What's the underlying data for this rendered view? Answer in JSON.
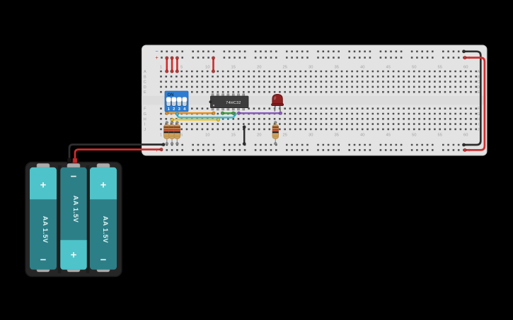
{
  "breadboard": {
    "row_labels": [
      "A",
      "B",
      "C",
      "D",
      "E",
      "F",
      "G",
      "H",
      "I",
      "J"
    ],
    "column_labels": [
      "1",
      "5",
      "10",
      "15",
      "20",
      "25",
      "30",
      "35",
      "40",
      "45",
      "50",
      "55",
      "60"
    ],
    "rail_minus": "−",
    "rail_plus": "+",
    "rail_minus_color": "#4a90d9",
    "rail_plus_color": "#d9534f",
    "body_color": "#e3e3e3"
  },
  "components": {
    "dip_switch": {
      "label": "ON",
      "positions": [
        "1",
        "2",
        "3",
        "4"
      ],
      "body_color": "#2e7dd1",
      "label_color": "#0d3a66"
    },
    "ic": {
      "label": "74HC32",
      "body_color": "#3c3c3c"
    },
    "led": {
      "color": "#8f2121",
      "name": "red LED"
    },
    "resistor": {
      "body_color": "#cfa160",
      "band_colors": [
        "#80451f",
        "#c8392f",
        "#232323",
        "#c59a4f"
      ]
    },
    "battery_pack": {
      "holder_color": "#262626",
      "cell_body_color": "#2d7f87",
      "cell_cap_color": "#4ec3c9",
      "cells": [
        {
          "label": "AA 1.5V",
          "plus": "+",
          "minus": "−"
        },
        {
          "label": "AA 1.5V",
          "plus": "+",
          "minus": "−"
        },
        {
          "label": "AA 1.5V",
          "plus": "+",
          "minus": "−"
        }
      ]
    }
  },
  "wires": {
    "power_red": "#cf2e2e",
    "ground_black": "#2e2e2e",
    "signal_orange": "#e8911d",
    "signal_yellow": "#eec41f",
    "signal_cyan": "#41bbcd",
    "signal_green": "#43a047",
    "signal_purple": "#8a5bbf"
  }
}
